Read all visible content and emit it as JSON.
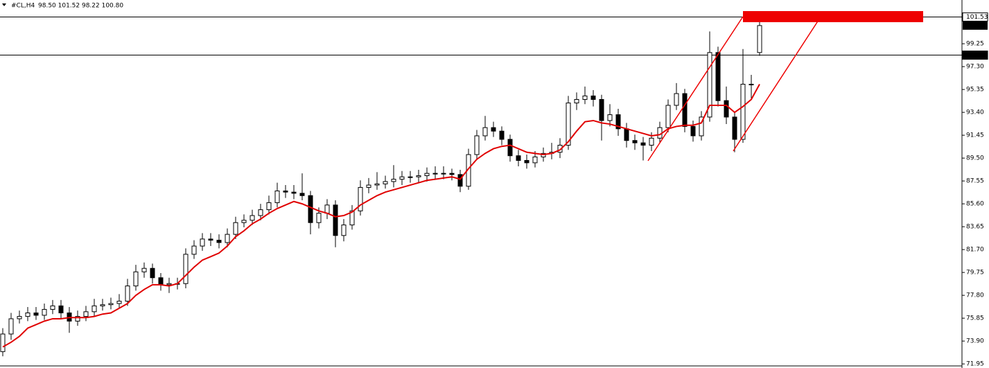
{
  "chart_data": {
    "type": "candlestick",
    "legend_label": "#CL,H4",
    "ohlc_label": "98.50 101.52 98.22 100.80",
    "ylim": [
      71.78,
      102.98
    ],
    "yticks": [
      {
        "value": 71.95,
        "label": "71.95"
      },
      {
        "value": 73.9,
        "label": "73.90"
      },
      75.85,
      {
        "value": 77.8,
        "label": "77.80"
      },
      79.75,
      {
        "value": 81.7,
        "label": "81.70"
      },
      83.65,
      {
        "value": 85.6,
        "label": "85.60"
      },
      87.55,
      {
        "value": 89.5,
        "label": "89.50"
      },
      91.45,
      {
        "value": 93.4,
        "label": "93.40"
      },
      95.35,
      {
        "value": 97.3,
        "label": "97.30"
      },
      99.25
    ],
    "levels": [
      101.53,
      98.28
    ],
    "current_price": {
      "value": 100.8,
      "label": "100.80"
    },
    "candles": {
      "up_color": "#ffffff",
      "down_color": "#000000",
      "open": [
        73.0,
        74.5,
        75.8,
        76.0,
        76.3,
        76.1,
        76.6,
        76.9,
        76.3,
        75.6,
        76.0,
        76.4,
        76.9,
        77.0,
        77.1,
        77.3,
        78.6,
        79.8,
        80.1,
        79.3,
        78.7,
        78.8,
        78.8,
        81.3,
        82.0,
        82.6,
        82.5,
        82.3,
        83.0,
        84.0,
        84.2,
        84.6,
        85.1,
        85.7,
        86.7,
        86.6,
        86.5,
        86.3,
        84.0,
        84.8,
        85.5,
        82.9,
        83.8,
        85.0,
        87.0,
        87.2,
        87.3,
        87.5,
        87.7,
        87.9,
        87.9,
        88.0,
        88.2,
        88.2,
        88.2,
        88.1,
        87.1,
        89.8,
        91.4,
        92.1,
        91.8,
        91.1,
        89.7,
        89.3,
        89.1,
        89.6,
        89.9,
        90.0,
        90.6,
        94.2,
        94.5,
        94.8,
        94.5,
        92.7,
        93.2,
        92.0,
        91.0,
        90.8,
        90.6,
        91.2,
        92.1,
        94.0,
        95.0,
        92.2,
        91.4,
        93.0,
        98.5,
        94.4,
        93.0,
        91.1,
        95.8,
        98.5
      ],
      "high": [
        75.0,
        76.3,
        76.5,
        76.8,
        76.8,
        77.1,
        77.4,
        77.4,
        76.8,
        76.5,
        76.9,
        77.5,
        77.5,
        77.6,
        77.9,
        79.2,
        80.4,
        80.6,
        80.5,
        79.7,
        79.3,
        79.3,
        81.8,
        82.5,
        83.1,
        83.1,
        83.0,
        83.5,
        84.5,
        84.7,
        85.1,
        85.6,
        86.3,
        87.4,
        87.2,
        87.2,
        88.2,
        86.7,
        85.3,
        86.0,
        85.9,
        84.3,
        85.5,
        87.6,
        87.8,
        88.3,
        88.0,
        88.9,
        88.4,
        88.4,
        88.5,
        88.7,
        88.8,
        88.8,
        88.6,
        88.5,
        90.3,
        91.9,
        93.1,
        92.6,
        92.2,
        91.5,
        90.2,
        89.8,
        90.1,
        90.4,
        90.8,
        91.2,
        94.8,
        95.1,
        95.6,
        95.3,
        94.9,
        94.1,
        93.7,
        92.5,
        91.5,
        91.3,
        91.7,
        92.6,
        94.5,
        95.9,
        95.4,
        92.7,
        93.5,
        100.3,
        99.0,
        95.6,
        93.4,
        98.8,
        96.6,
        101.52
      ],
      "low": [
        72.6,
        74.0,
        75.4,
        75.6,
        75.7,
        75.7,
        76.2,
        75.8,
        74.6,
        75.2,
        75.6,
        76.0,
        76.5,
        76.6,
        76.7,
        76.9,
        78.2,
        79.3,
        78.8,
        78.2,
        78.0,
        78.3,
        78.4,
        80.9,
        81.6,
        82.0,
        81.8,
        81.9,
        82.6,
        83.6,
        83.8,
        84.2,
        84.7,
        85.3,
        86.1,
        86.0,
        85.9,
        83.0,
        83.5,
        84.3,
        81.9,
        82.4,
        83.4,
        84.6,
        86.5,
        86.8,
        86.9,
        87.0,
        87.2,
        87.4,
        87.4,
        87.5,
        87.7,
        87.7,
        87.6,
        86.6,
        86.8,
        89.4,
        91.0,
        91.3,
        90.6,
        89.2,
        88.8,
        88.6,
        88.7,
        89.2,
        89.4,
        89.5,
        90.2,
        93.6,
        94.1,
        93.9,
        91.0,
        92.2,
        91.4,
        90.4,
        90.2,
        89.3,
        90.1,
        90.8,
        91.7,
        93.6,
        91.7,
        90.9,
        91.0,
        92.6,
        93.9,
        92.4,
        90.0,
        90.8,
        94.6,
        98.22
      ],
      "close": [
        74.5,
        75.8,
        76.0,
        76.3,
        76.1,
        76.6,
        76.9,
        76.3,
        75.6,
        76.0,
        76.4,
        76.9,
        77.0,
        77.1,
        77.3,
        78.6,
        79.8,
        80.1,
        79.3,
        78.7,
        78.8,
        78.8,
        81.3,
        82.0,
        82.6,
        82.5,
        82.3,
        83.0,
        84.0,
        84.2,
        84.6,
        85.1,
        85.7,
        86.7,
        86.6,
        86.5,
        86.3,
        84.0,
        84.8,
        85.5,
        82.9,
        83.8,
        85.0,
        87.0,
        87.2,
        87.3,
        87.5,
        87.7,
        87.9,
        87.9,
        88.0,
        88.2,
        88.2,
        88.2,
        88.1,
        87.1,
        89.8,
        91.4,
        92.1,
        91.8,
        91.1,
        89.7,
        89.3,
        89.1,
        89.6,
        89.9,
        90.0,
        90.6,
        94.2,
        94.5,
        94.8,
        94.5,
        92.7,
        93.2,
        92.0,
        91.0,
        90.8,
        90.6,
        91.2,
        92.1,
        94.0,
        95.0,
        92.2,
        91.4,
        93.0,
        98.5,
        94.4,
        93.0,
        91.1,
        95.8,
        95.8,
        100.8
      ]
    },
    "moving_average": {
      "color": "#e00000",
      "values": [
        73.4,
        73.8,
        74.3,
        75.0,
        75.3,
        75.6,
        75.8,
        75.8,
        75.9,
        75.9,
        75.9,
        76.0,
        76.2,
        76.3,
        76.7,
        77.1,
        77.8,
        78.3,
        78.7,
        78.7,
        78.6,
        78.8,
        79.5,
        80.2,
        80.8,
        81.1,
        81.4,
        82.0,
        82.8,
        83.3,
        83.9,
        84.3,
        84.8,
        85.2,
        85.5,
        85.8,
        85.6,
        85.3,
        85.0,
        84.8,
        84.5,
        84.6,
        84.9,
        85.5,
        85.9,
        86.3,
        86.6,
        86.8,
        87.0,
        87.2,
        87.4,
        87.6,
        87.7,
        87.8,
        87.9,
        87.7,
        88.6,
        89.4,
        89.9,
        90.3,
        90.5,
        90.6,
        90.3,
        90.0,
        89.9,
        89.8,
        89.9,
        90.2,
        90.9,
        91.8,
        92.6,
        92.7,
        92.5,
        92.4,
        92.2,
        92.0,
        91.8,
        91.6,
        91.4,
        91.5,
        92.0,
        92.2,
        92.3,
        92.3,
        92.5,
        94.0,
        94.0,
        94.0,
        93.4,
        93.9,
        94.5,
        95.8
      ]
    }
  }
}
